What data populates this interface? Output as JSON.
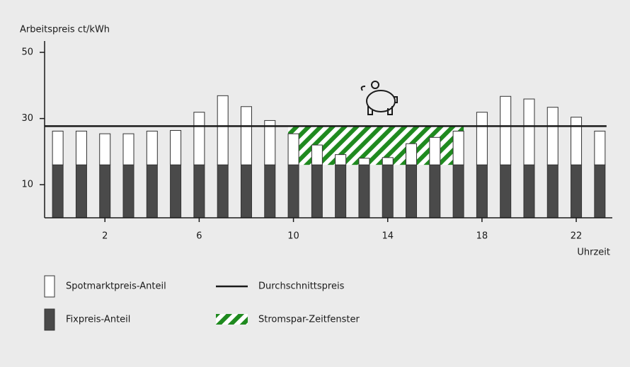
{
  "chart_data": {
    "type": "stacked-bar",
    "y_label": "Arbeitspreis ct/kWh",
    "x_label": "Uhrzeit",
    "categories": [
      null,
      null,
      "2",
      null,
      null,
      null,
      "6",
      null,
      null,
      null,
      "10",
      null,
      null,
      null,
      "14",
      null,
      null,
      null,
      "18",
      null,
      null,
      null,
      "22",
      null
    ],
    "series": [
      {
        "name": "Fixpreis-Anteil",
        "color": "#4a4a4a",
        "values": [
          16,
          16,
          16,
          16,
          16,
          16,
          16,
          16,
          16,
          16,
          16,
          16,
          16,
          16,
          16,
          16,
          16,
          16,
          16,
          16,
          16,
          16,
          16,
          16
        ]
      },
      {
        "name": "Spotmarktpreis-Anteil",
        "color": "#ffffff",
        "values": [
          10.2,
          10.2,
          9.4,
          9.4,
          10.2,
          10.4,
          15.9,
          20.9,
          17.6,
          13.4,
          9.4,
          6.0,
          3.1,
          2.0,
          2.2,
          6.4,
          8.3,
          10.2,
          15.9,
          20.7,
          19.9,
          17.4,
          14.4,
          10.2
        ]
      }
    ],
    "average": {
      "name": "Durchschnittspreis",
      "value": 27.7,
      "color": "#1a1a1a"
    },
    "savings_window": {
      "name": "Stromspar-Zeitfenster",
      "color": "#1f8a1f",
      "range": [
        10,
        17
      ]
    },
    "ylim": [
      0,
      53
    ],
    "yticks": [
      10,
      30,
      50
    ]
  }
}
